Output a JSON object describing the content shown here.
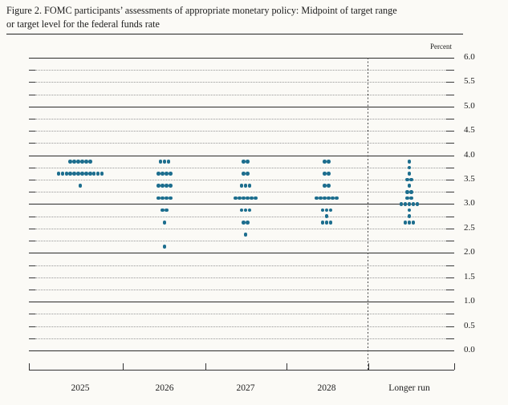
{
  "figure": {
    "title_line1": "Figure 2. FOMC participants’ assessments of appropriate monetary policy: Midpoint of target range",
    "title_line2": "or target level for the federal funds rate"
  },
  "chart_data": {
    "type": "scatter",
    "subtype": "dot-plot",
    "title": "FOMC participants’ assessments of appropriate monetary policy: Midpoint of target range or target level for the federal funds rate",
    "unit_label": "Percent",
    "categories": [
      "2025",
      "2026",
      "2027",
      "2028",
      "Longer run"
    ],
    "y_axis": {
      "min": 0.0,
      "max": 6.0,
      "tick_labels": [
        "6.0",
        "5.5",
        "5.0",
        "4.5",
        "4.0",
        "3.5",
        "3.0",
        "2.5",
        "2.0",
        "1.5",
        "1.0",
        "0.5",
        "0.0"
      ],
      "label_step": 0.5,
      "minor_grid_step": 0.25,
      "solid_grid_step": 1.0,
      "grid": "on"
    },
    "series": [
      {
        "category": "2025",
        "dots": [
          {
            "rate": 3.875,
            "count": 6
          },
          {
            "rate": 3.625,
            "count": 12
          },
          {
            "rate": 3.375,
            "count": 1
          }
        ]
      },
      {
        "category": "2026",
        "dots": [
          {
            "rate": 3.875,
            "count": 3
          },
          {
            "rate": 3.625,
            "count": 4
          },
          {
            "rate": 3.375,
            "count": 4
          },
          {
            "rate": 3.125,
            "count": 4
          },
          {
            "rate": 2.875,
            "count": 2
          },
          {
            "rate": 2.625,
            "count": 1
          },
          {
            "rate": 2.125,
            "count": 1
          }
        ]
      },
      {
        "category": "2027",
        "dots": [
          {
            "rate": 3.875,
            "count": 2
          },
          {
            "rate": 3.625,
            "count": 2
          },
          {
            "rate": 3.375,
            "count": 3
          },
          {
            "rate": 3.125,
            "count": 6
          },
          {
            "rate": 2.875,
            "count": 3
          },
          {
            "rate": 2.625,
            "count": 2
          },
          {
            "rate": 2.375,
            "count": 1
          }
        ]
      },
      {
        "category": "2028",
        "dots": [
          {
            "rate": 3.875,
            "count": 2
          },
          {
            "rate": 3.625,
            "count": 2
          },
          {
            "rate": 3.375,
            "count": 2
          },
          {
            "rate": 3.125,
            "count": 6
          },
          {
            "rate": 2.875,
            "count": 3
          },
          {
            "rate": 2.75,
            "count": 1
          },
          {
            "rate": 2.625,
            "count": 3
          }
        ]
      },
      {
        "category": "Longer run",
        "dots": [
          {
            "rate": 3.875,
            "count": 1
          },
          {
            "rate": 3.75,
            "count": 1
          },
          {
            "rate": 3.625,
            "count": 1
          },
          {
            "rate": 3.5,
            "count": 2
          },
          {
            "rate": 3.375,
            "count": 1
          },
          {
            "rate": 3.25,
            "count": 2
          },
          {
            "rate": 3.125,
            "count": 2
          },
          {
            "rate": 3.0,
            "count": 5
          },
          {
            "rate": 2.875,
            "count": 1
          },
          {
            "rate": 2.75,
            "count": 1
          },
          {
            "rate": 2.625,
            "count": 3
          }
        ]
      }
    ],
    "legend": "none",
    "colors": {
      "dot": "#1d6e8e",
      "major_gridline": "#2b2b2b",
      "minor_gridline": "#969696",
      "text": "#1c1c1c",
      "background": "#fbfaf6"
    }
  }
}
